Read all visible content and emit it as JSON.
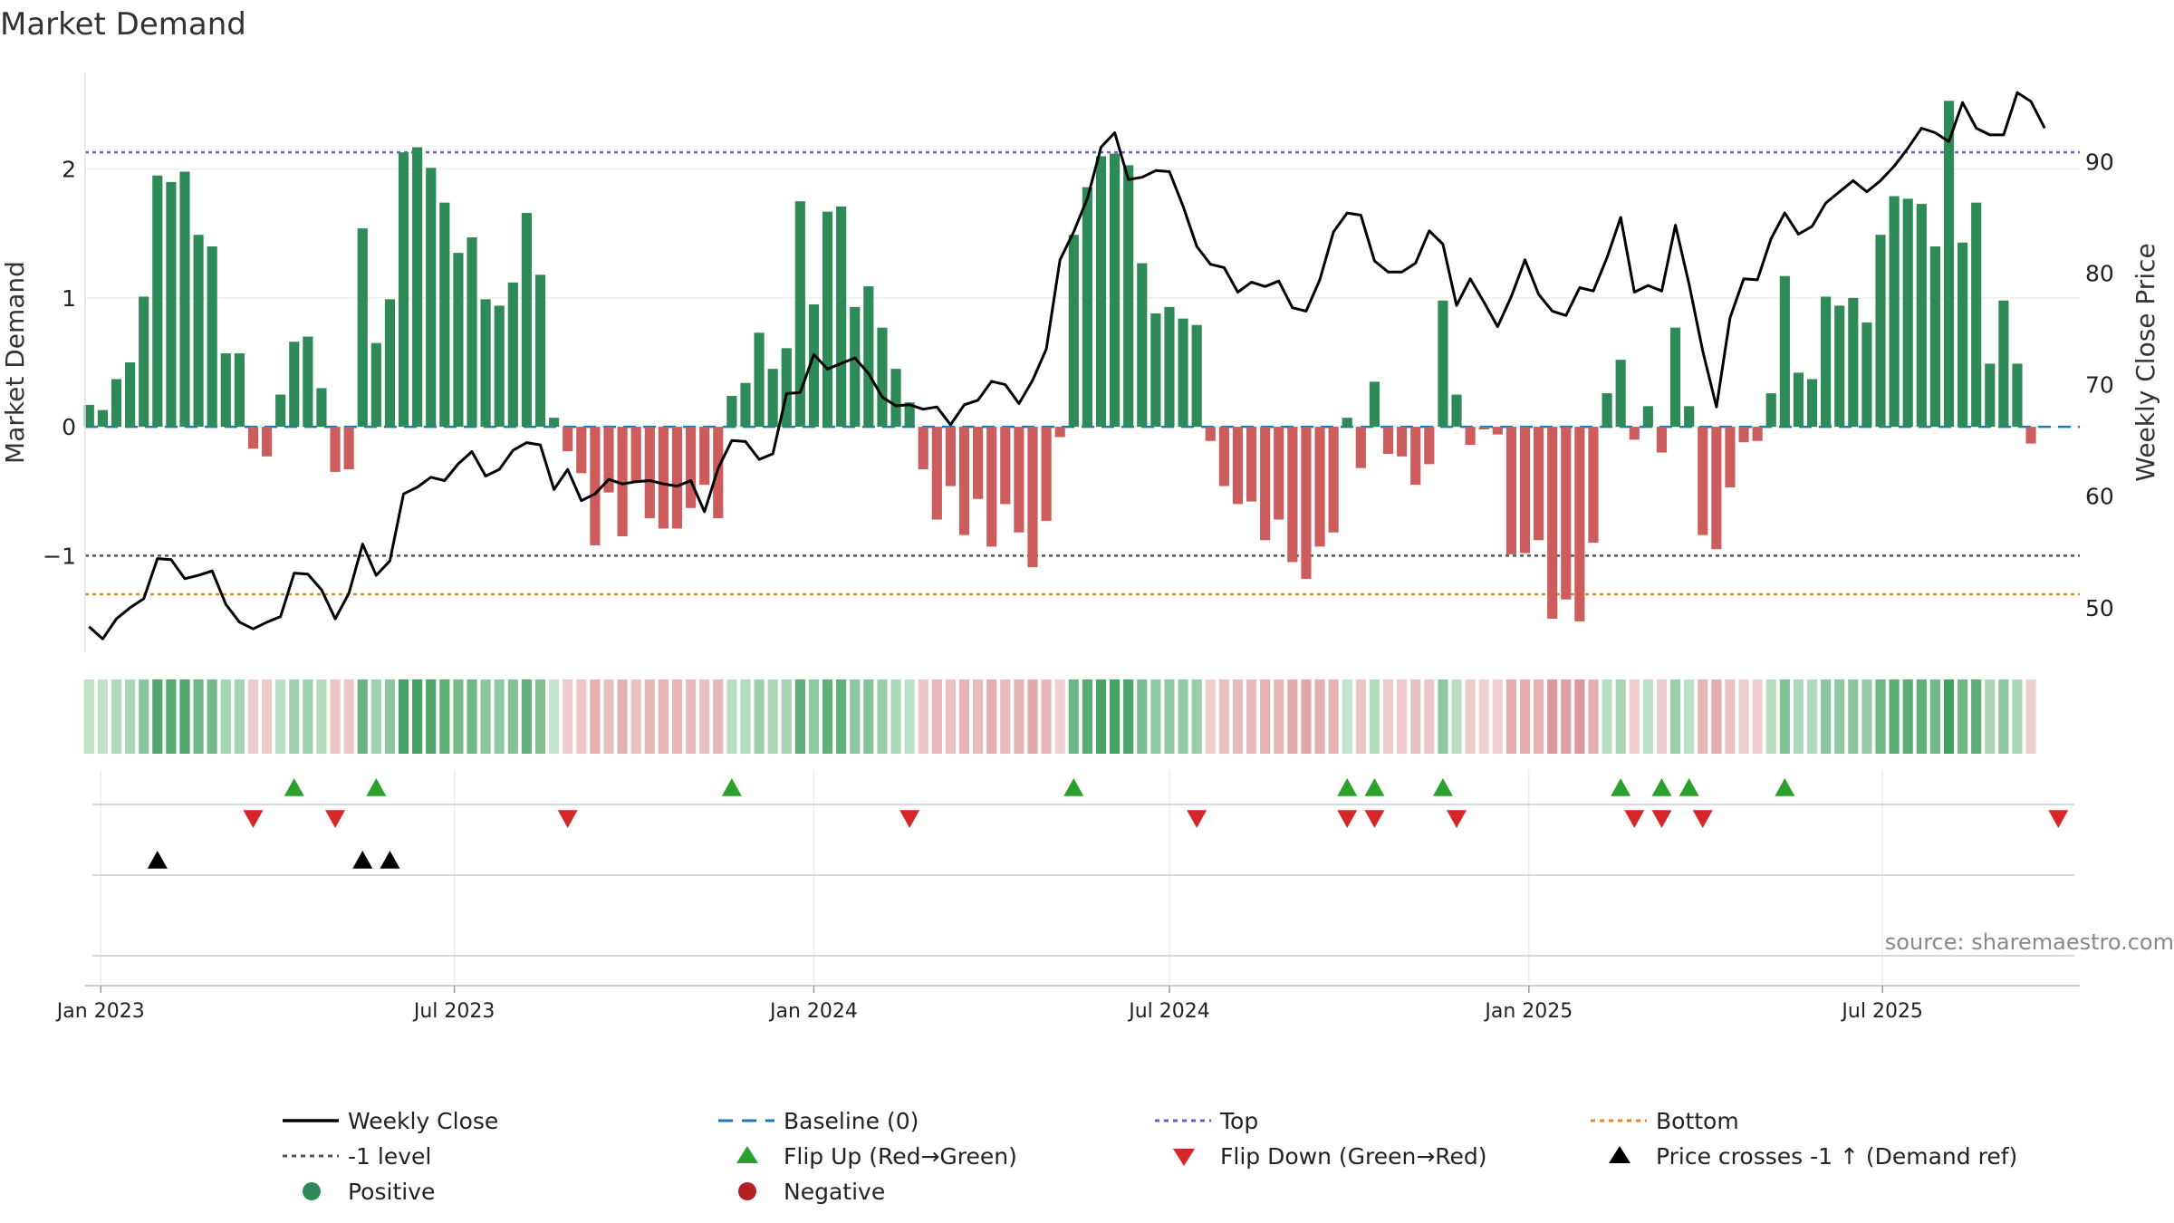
{
  "title": "Market Demand",
  "source": "source: sharemaestro.com",
  "colors": {
    "positive": "#2e8b57",
    "negative": "#cd5c5c",
    "price": "#000000",
    "baseline": "#1f77b4",
    "top": "#6a5acd",
    "bottom": "#e08a1e",
    "minus_one": "#555555",
    "flip_up": "#2ca02c",
    "flip_down": "#d62728",
    "cross": "#000000"
  },
  "legend": [
    {
      "label": "Weekly Close",
      "marker": "line-solid",
      "color": "#000000"
    },
    {
      "label": "Baseline (0)",
      "marker": "line-dash",
      "color": "#1f77b4"
    },
    {
      "label": "Top",
      "marker": "line-dot",
      "color": "#6a5acd"
    },
    {
      "label": "Bottom",
      "marker": "line-dot",
      "color": "#e08a1e"
    },
    {
      "label": "-1 level",
      "marker": "line-dot",
      "color": "#555555"
    },
    {
      "label": "Flip Up (Red→Green)",
      "marker": "triangle-up",
      "color": "#2ca02c"
    },
    {
      "label": "Flip Down (Green→Red)",
      "marker": "triangle-down",
      "color": "#d62728"
    },
    {
      "label": "Price crosses -1 ↑ (Demand ref)",
      "marker": "triangle-up",
      "color": "#000000"
    },
    {
      "label": "Positive",
      "marker": "circle",
      "color": "#2e8b57"
    },
    {
      "label": "Negative",
      "marker": "circle",
      "color": "#b22222"
    }
  ],
  "chart_data": {
    "type": "bar",
    "ylabel": "Market Demand",
    "y2label": "Weekly Close Price",
    "ylim": [
      -1.75,
      2.75
    ],
    "y2lim": [
      46,
      98
    ],
    "yticks": [
      -1,
      0,
      1,
      2
    ],
    "y2ticks": [
      50,
      60,
      70,
      80,
      90
    ],
    "xticks": [
      "Jan 2023",
      "Jul 2023",
      "Jan 2024",
      "Jul 2024",
      "Jan 2025",
      "Jul 2025"
    ],
    "x_start": "2022-12-26",
    "reference_lines": {
      "baseline": 0,
      "top": 2.13,
      "bottom": -1.3,
      "minus_one": -1
    },
    "series": [
      {
        "name": "Market Demand",
        "values": [
          0.17,
          0.13,
          0.37,
          0.5,
          1.01,
          1.95,
          1.9,
          1.98,
          1.49,
          1.4,
          0.57,
          0.57,
          -0.17,
          -0.23,
          0.25,
          0.66,
          0.7,
          0.3,
          -0.35,
          -0.33,
          1.54,
          0.65,
          0.99,
          2.13,
          2.17,
          2.01,
          1.74,
          1.35,
          1.47,
          0.99,
          0.94,
          1.12,
          1.66,
          1.18,
          0.07,
          -0.19,
          -0.36,
          -0.92,
          -0.51,
          -0.85,
          -0.43,
          -0.71,
          -0.79,
          -0.79,
          -0.63,
          -0.45,
          -0.71,
          0.24,
          0.34,
          0.73,
          0.45,
          0.61,
          1.75,
          0.95,
          1.67,
          1.71,
          0.93,
          1.09,
          0.77,
          0.45,
          0.19,
          -0.33,
          -0.72,
          -0.46,
          -0.84,
          -0.56,
          -0.93,
          -0.6,
          -0.82,
          -1.09,
          -0.73,
          -0.08,
          1.49,
          1.86,
          2.1,
          2.12,
          2.03,
          1.27,
          0.88,
          0.93,
          0.84,
          0.79,
          -0.11,
          -0.46,
          -0.6,
          -0.58,
          -0.88,
          -0.72,
          -1.05,
          -1.18,
          -0.93,
          -0.82,
          0.07,
          -0.32,
          0.35,
          -0.21,
          -0.23,
          -0.45,
          -0.29,
          0.98,
          0.25,
          -0.14,
          -0.02,
          -0.06,
          -0.99,
          -0.98,
          -0.88,
          -1.49,
          -1.34,
          -1.51,
          -0.9,
          0.26,
          0.52,
          -0.1,
          0.16,
          -0.2,
          0.77,
          0.16,
          -0.84,
          -0.95,
          -0.47,
          -0.12,
          -0.11,
          0.26,
          1.17,
          0.42,
          0.37,
          1.01,
          0.94,
          1.0,
          0.81,
          1.49,
          1.79,
          1.77,
          1.73,
          1.4,
          2.53,
          1.43,
          1.74,
          0.49,
          0.98,
          0.49,
          -0.13
        ]
      },
      {
        "name": "Weekly Close",
        "values": [
          48.3,
          47.2,
          49.0,
          50.0,
          50.8,
          54.4,
          54.3,
          52.6,
          52.9,
          53.3,
          50.3,
          48.7,
          48.1,
          48.7,
          49.2,
          53.1,
          53.0,
          51.6,
          49.0,
          51.3,
          55.7,
          52.9,
          54.2,
          60.2,
          60.8,
          61.7,
          61.4,
          62.9,
          64.0,
          61.8,
          62.4,
          64.1,
          64.8,
          64.6,
          60.6,
          62.4,
          59.6,
          60.2,
          61.5,
          61.1,
          61.3,
          61.4,
          61.1,
          60.9,
          61.4,
          58.6,
          62.5,
          65.0,
          64.9,
          63.3,
          63.8,
          69.2,
          69.3,
          72.7,
          71.4,
          71.9,
          72.4,
          71.0,
          68.9,
          68.1,
          68.2,
          67.8,
          68.0,
          66.4,
          68.2,
          68.6,
          70.3,
          70.0,
          68.3,
          70.4,
          73.2,
          81.2,
          83.7,
          86.7,
          91.3,
          92.6,
          88.4,
          88.6,
          89.2,
          89.1,
          86.0,
          82.4,
          80.8,
          80.5,
          78.3,
          79.2,
          78.8,
          79.3,
          76.9,
          76.6,
          79.4,
          83.7,
          85.4,
          85.2,
          81.1,
          80.1,
          80.1,
          80.9,
          83.8,
          82.6,
          77.1,
          79.5,
          77.4,
          75.2,
          77.9,
          81.2,
          78.1,
          76.6,
          76.2,
          78.7,
          78.4,
          81.4,
          85.0,
          78.3,
          78.9,
          78.4,
          84.3,
          79.0,
          73.0,
          68.0,
          76.0,
          79.5,
          79.4,
          83.1,
          85.4,
          83.5,
          84.2,
          86.3,
          87.3,
          88.3,
          87.3,
          88.3,
          89.6,
          91.2,
          93.0,
          92.6,
          91.8,
          95.3,
          93.0,
          92.4,
          92.4,
          96.2,
          95.4,
          93.0
        ]
      }
    ],
    "flip_up_weeks": [
      15,
      21,
      47,
      72,
      92,
      94,
      99,
      112,
      115,
      117,
      124
    ],
    "flip_down_weeks": [
      12,
      18,
      35,
      60,
      81,
      92,
      94,
      100,
      113,
      115,
      118,
      144
    ],
    "price_cross_weeks": [
      5,
      20,
      22
    ]
  }
}
